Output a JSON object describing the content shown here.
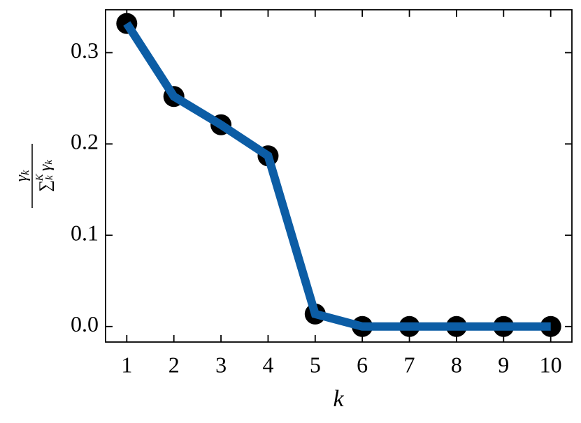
{
  "chart_data": {
    "type": "line",
    "xlabel": "k",
    "ylabel": {
      "numerator": [
        "γ",
        "k"
      ],
      "denominator": [
        "∑",
        "k",
        "K",
        "γ",
        "k"
      ]
    },
    "x": [
      1,
      2,
      3,
      4,
      5,
      6,
      7,
      8,
      9,
      10
    ],
    "series": [
      {
        "color": "#0C5DA5",
        "marker_color": "#000000",
        "values": [
          0.332,
          0.252,
          0.221,
          0.187,
          0.0137,
          0,
          0,
          0,
          0,
          0
        ]
      }
    ],
    "xlim": [
      0.55,
      10.45
    ],
    "xticks": [
      1,
      2,
      3,
      4,
      5,
      6,
      7,
      8,
      9,
      10
    ],
    "ylim": [
      -0.017,
      0.347
    ],
    "yticks": [
      {
        "value": 0,
        "label": "0.0"
      },
      {
        "value": 0.1,
        "label": "0.1"
      },
      {
        "value": 0.2,
        "label": "0.2"
      },
      {
        "value": 0.3,
        "label": "0.3"
      }
    ],
    "grid": false
  }
}
